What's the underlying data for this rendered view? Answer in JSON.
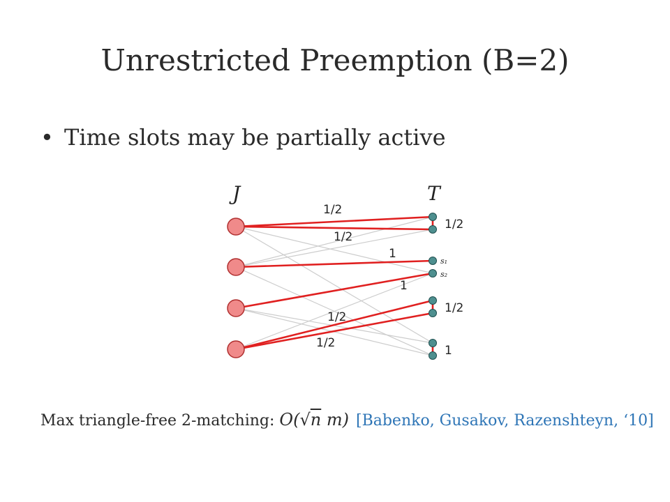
{
  "slide": {
    "title": "Unrestricted Preemption (B=2)",
    "bullet": "Time slots may be partially active",
    "footer_text": "Max triangle-free 2-matching: ",
    "footer_math_prefix": "O(√",
    "footer_math_sqrt": "n",
    "footer_math_suffix": " m)",
    "citation": "[Babenko, Gusakov, Razenshteyn, ‘10]"
  },
  "diagram": {
    "left_label": "J",
    "right_label": "T",
    "slot_labels": [
      "s₁",
      "s₂"
    ],
    "edge_labels": [
      "1/2",
      "1/2",
      "1",
      "1",
      "1/2",
      "1/2"
    ],
    "pair_labels": [
      "1/2",
      "1/2",
      "1"
    ],
    "colors": {
      "job_fill": "#f08a8a",
      "job_stroke": "#b03030",
      "slot_fill": "#4e8f8f",
      "slot_stroke": "#1f4f4f",
      "active_edge": "#e02020",
      "inactive_edge": "#cccccc"
    }
  }
}
